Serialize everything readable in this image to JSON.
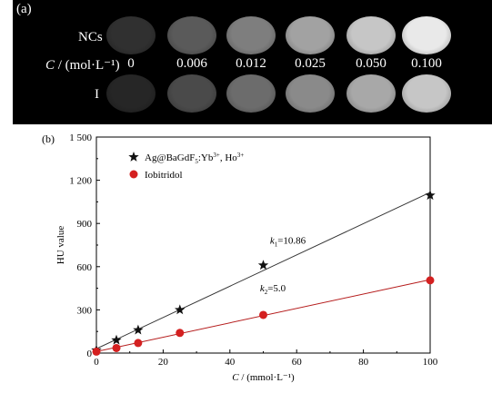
{
  "panel_a": {
    "label": "(a)",
    "row_labels": {
      "ncs": "NCs",
      "conc_prefix": "C",
      "conc_unit": " / (mol·L⁻¹)",
      "iodine": "I"
    },
    "concentrations": [
      "0",
      "0.006",
      "0.012",
      "0.025",
      "0.050",
      "0.100"
    ],
    "ncs_phantom_colors": [
      "#303030",
      "#5a5a5a",
      "#7e7e7e",
      "#a2a2a2",
      "#c6c6c6",
      "#e9e9e9"
    ],
    "iodine_phantom_colors": [
      "#262626",
      "#4a4a4a",
      "#6c6c6c",
      "#8a8a8a",
      "#a8a8a8",
      "#c6c6c6"
    ]
  },
  "chart_data": {
    "type": "scatter",
    "panel_label": "(b)",
    "xlabel_var": "C",
    "xlabel_unit": " / (mmol·L⁻¹)",
    "ylabel": "HU value",
    "xlim": [
      0,
      100
    ],
    "ylim": [
      0,
      1500
    ],
    "x_ticks": [
      0,
      20,
      40,
      60,
      80,
      100
    ],
    "y_ticks": [
      0,
      300,
      600,
      900,
      1200,
      1500
    ],
    "y_tick_labels": [
      "0",
      "300",
      "600",
      "900",
      "1 200",
      "1 500"
    ],
    "series": [
      {
        "name_base": "Ag@BaGdF",
        "name_sub": "5",
        "name_tail": ":Yb",
        "name_sup1": "3+",
        "name_mid": ", Ho",
        "name_sup2": "3+",
        "marker": "star",
        "color": "#111111",
        "line_color": "#333333",
        "x": [
          0,
          6,
          12.5,
          25,
          50,
          100
        ],
        "y": [
          20,
          90,
          160,
          300,
          610,
          1095
        ],
        "fit": {
          "slope": 10.86,
          "intercept": 30
        }
      },
      {
        "name": "Iobitridol",
        "marker": "circle",
        "color": "#d42020",
        "line_color": "#b51c1c",
        "x": [
          0,
          6,
          12.5,
          25,
          50,
          100
        ],
        "y": [
          10,
          35,
          70,
          140,
          265,
          505
        ],
        "fit": {
          "slope": 5.0,
          "intercept": 10
        }
      }
    ],
    "annotations": [
      {
        "k": "k",
        "sub": "1",
        "text": "=10.86",
        "x": 52,
        "y": 760
      },
      {
        "k": "k",
        "sub": "2",
        "text": "=5.0",
        "x": 49,
        "y": 430
      }
    ]
  }
}
